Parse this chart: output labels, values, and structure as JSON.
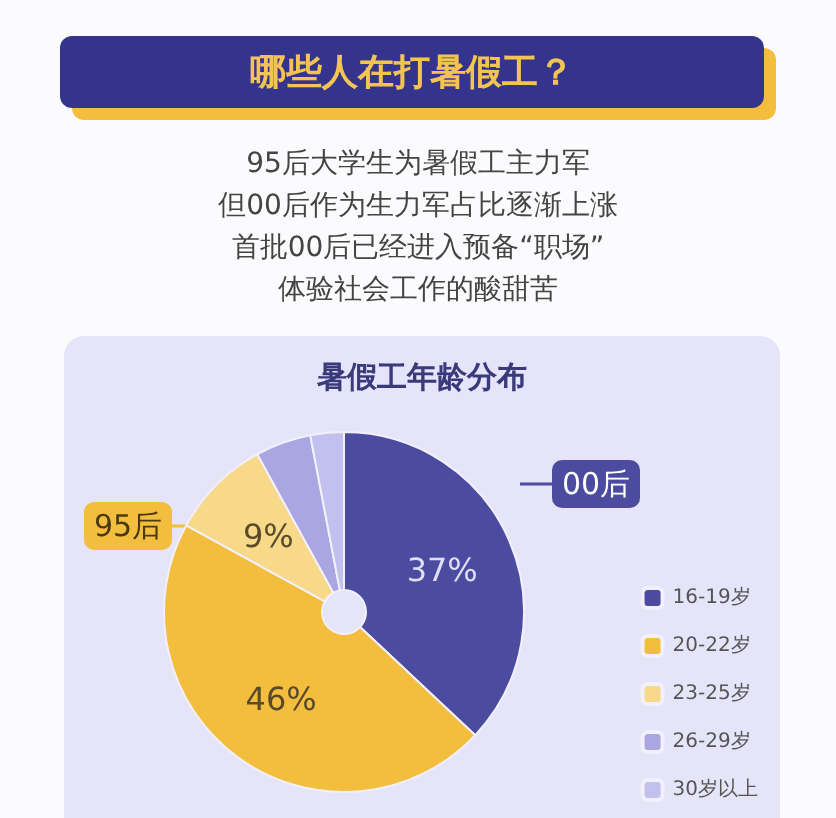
{
  "chart_data": {
    "type": "donut",
    "title": "暑假工年龄分布",
    "annotations": [
      "00后",
      "95后",
      "哪些人在打暑假工？",
      "95后大学生为暑假工主力军",
      "但00后作为生力军占比逐渐上涨",
      "首批00后已经进入预备“职场”",
      "体验社会工作的酸甜苦"
    ],
    "categories": [
      "16-19岁",
      "20-22岁",
      "23-25岁",
      "26-29岁",
      "30岁以上"
    ],
    "values": [
      37,
      46,
      9,
      5,
      3
    ],
    "colors": [
      "#4b4ba0",
      "#f3bd3e",
      "#f8d98a",
      "#a9a6e2",
      "#c2c0ee"
    ],
    "value_labels": [
      "37%",
      "46%",
      "9%",
      null,
      null
    ],
    "legend": "right"
  }
}
